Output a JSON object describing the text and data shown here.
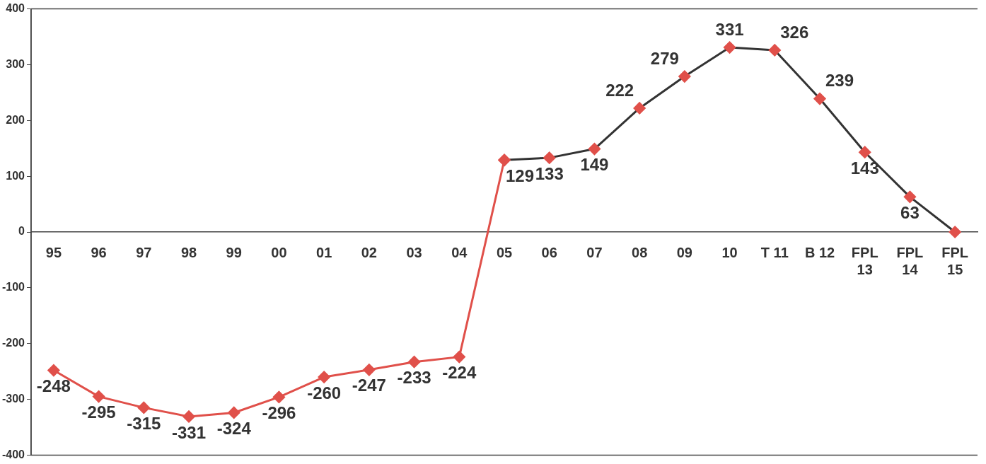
{
  "chart_data": {
    "type": "line",
    "categories": [
      "95",
      "96",
      "97",
      "98",
      "99",
      "00",
      "01",
      "02",
      "03",
      "04",
      "05",
      "06",
      "07",
      "08",
      "09",
      "10",
      "T 11",
      "B 12",
      "FPL\n13",
      "FPL\n14",
      "FPL\n15"
    ],
    "series": [
      {
        "color": "#e0504a",
        "values": [
          -248,
          -295,
          -315,
          -331,
          -324,
          -296,
          -260,
          -247,
          -233,
          -224,
          129,
          null,
          null,
          null,
          null,
          null,
          null,
          null,
          null,
          null,
          null
        ],
        "value_labels": [
          "-248",
          "-295",
          "-315",
          "-331",
          "-324",
          "-296",
          "-260",
          "-247",
          "-233",
          "-224",
          null,
          null,
          null,
          null,
          null,
          null,
          null,
          null,
          null,
          null,
          null
        ]
      },
      {
        "color": "#333333",
        "colors": [
          "#e0504a",
          "#e0504a",
          "#e0504a",
          "#e0504a",
          "#e0504a",
          "#e0504a",
          "#e0504a",
          "#e0504a",
          "#e0504a",
          "#e0504a",
          "#e0504a",
          "#e0504a",
          "#e0504a",
          "#e0504a",
          "#e0504a",
          "#e0504a",
          "#e0504a",
          "#e0504a",
          "#e0504a",
          "#e0504a",
          "#e0504a"
        ],
        "values": [
          null,
          null,
          null,
          null,
          null,
          null,
          null,
          null,
          null,
          null,
          129,
          133,
          149,
          222,
          279,
          331,
          326,
          239,
          143,
          63,
          0
        ],
        "value_labels": [
          null,
          null,
          null,
          null,
          null,
          null,
          null,
          null,
          null,
          null,
          "129",
          "133",
          "149",
          "222",
          "279",
          "331",
          "326",
          "239",
          "143",
          "63",
          null
        ]
      }
    ],
    "ylim": [
      -400,
      400
    ],
    "yticks": [
      -400,
      -300,
      -200,
      -100,
      0,
      100,
      200,
      300,
      400
    ],
    "grid": false,
    "legend": false,
    "marker": "diamond",
    "line_style": "solid"
  }
}
